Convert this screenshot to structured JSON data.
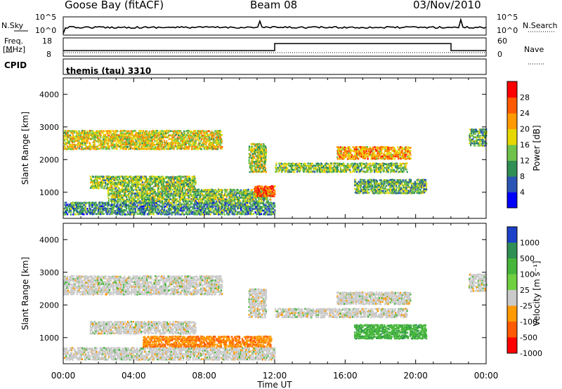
{
  "header": {
    "station": "Goose Bay (fitACF)",
    "beam": "Beam 08",
    "date": "03/Nov/2010"
  },
  "noise_panel": {
    "left_label": "N.Sky",
    "right_label": "N.Search",
    "left_ticks": [
      "10^5",
      "10^0"
    ],
    "right_ticks": [
      "10^5",
      "10^0"
    ]
  },
  "freq_panel": {
    "left_label_1": "Freq.",
    "left_label_2": "[MHz]",
    "right_label": "Nave",
    "left_ticks": [
      "18",
      "8"
    ],
    "right_ticks": [
      "60",
      "0"
    ]
  },
  "cpid": {
    "label": "CPID",
    "value": "themis (tau) 3310"
  },
  "time_axis": {
    "label": "Time UT",
    "ticks": [
      "00:00",
      "04:00",
      "08:00",
      "12:00",
      "16:00",
      "20:00",
      "00:00"
    ]
  },
  "chart_data": [
    {
      "type": "heatmap",
      "name": "power",
      "ylabel": "Slant Range [km]",
      "yticks": [
        1000,
        2000,
        3000,
        4000
      ],
      "ylim": [
        200,
        4500
      ],
      "xlim_hours": [
        0,
        24
      ],
      "colorbar": {
        "label": "Power [dB]",
        "ticks": [
          "4",
          "8",
          "12",
          "16",
          "20",
          "24",
          "28"
        ],
        "colors": [
          "#0000ff",
          "#2b55b5",
          "#2f8f55",
          "#6fc24a",
          "#e6d800",
          "#ff9a00",
          "#ff5a00",
          "#ff0000"
        ]
      },
      "regions": [
        {
          "x": [
            0.0,
            9.0
          ],
          "y": [
            2300,
            2900
          ],
          "v": 18
        },
        {
          "x": [
            10.5,
            11.5
          ],
          "y": [
            1600,
            2500
          ],
          "v": 16
        },
        {
          "x": [
            12.0,
            19.5
          ],
          "y": [
            1600,
            1900
          ],
          "v": 14
        },
        {
          "x": [
            15.5,
            19.7
          ],
          "y": [
            2000,
            2400
          ],
          "v": 22
        },
        {
          "x": [
            0.0,
            12.0
          ],
          "y": [
            300,
            700
          ],
          "v": 10
        },
        {
          "x": [
            2.5,
            11.8
          ],
          "y": [
            700,
            1100
          ],
          "v": 14
        },
        {
          "x": [
            10.8,
            12.0
          ],
          "y": [
            850,
            1200
          ],
          "v": 26
        },
        {
          "x": [
            1.5,
            7.5
          ],
          "y": [
            1100,
            1500
          ],
          "v": 14
        },
        {
          "x": [
            16.5,
            20.6
          ],
          "y": [
            950,
            1400
          ],
          "v": 12
        },
        {
          "x": [
            23.0,
            24.0
          ],
          "y": [
            2400,
            2950
          ],
          "v": 12
        }
      ]
    },
    {
      "type": "heatmap",
      "name": "velocity",
      "ylabel": "Slant Range [km]",
      "yticks": [
        1000,
        2000,
        3000,
        4000
      ],
      "ylim": [
        200,
        4500
      ],
      "xlim_hours": [
        0,
        24
      ],
      "colorbar": {
        "label": "Velocity [m s⁻¹]",
        "ticks": [
          "1000",
          "500",
          "100",
          "25",
          "-25",
          "-100",
          "-500",
          "-1000"
        ],
        "colors": [
          "#1c40c8",
          "#2f8f55",
          "#46b63a",
          "#6fd040",
          "#cacaca",
          "#ff9a00",
          "#ff5a00",
          "#ff0000"
        ]
      },
      "regions": [
        {
          "x": [
            0.0,
            9.0
          ],
          "y": [
            2300,
            2900
          ],
          "v": 0
        },
        {
          "x": [
            10.5,
            11.5
          ],
          "y": [
            1600,
            2500
          ],
          "v": 0
        },
        {
          "x": [
            12.0,
            19.5
          ],
          "y": [
            1600,
            1900
          ],
          "v": 0
        },
        {
          "x": [
            15.5,
            19.7
          ],
          "y": [
            2000,
            2400
          ],
          "v": 0
        },
        {
          "x": [
            0.0,
            12.0
          ],
          "y": [
            300,
            700
          ],
          "v": 0
        },
        {
          "x": [
            4.5,
            11.8
          ],
          "y": [
            700,
            1050
          ],
          "v": -90
        },
        {
          "x": [
            1.5,
            7.5
          ],
          "y": [
            1100,
            1500
          ],
          "v": 0
        },
        {
          "x": [
            16.5,
            20.6
          ],
          "y": [
            950,
            1400
          ],
          "v": 80
        },
        {
          "x": [
            23.0,
            24.0
          ],
          "y": [
            2400,
            2950
          ],
          "v": 0
        }
      ]
    }
  ]
}
